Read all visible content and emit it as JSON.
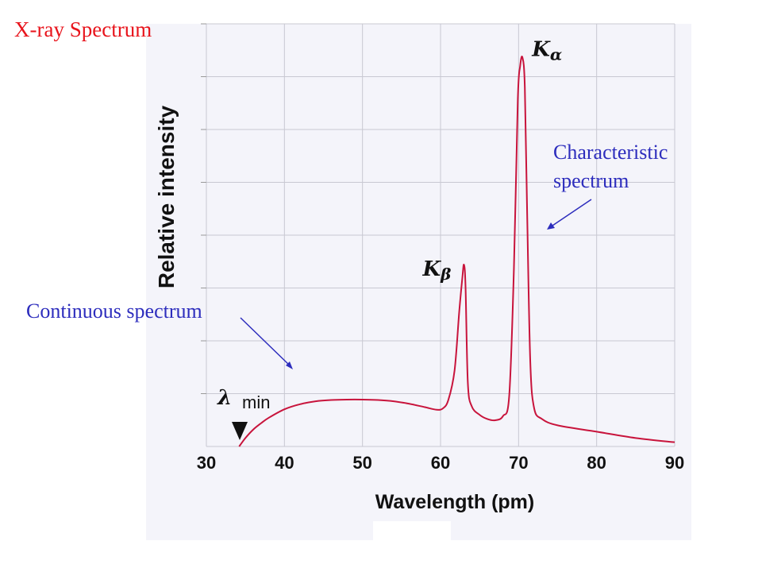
{
  "page": {
    "title": "X-ray Spectrum"
  },
  "annotations": {
    "continuous": "Continuous spectrum",
    "characteristic_line1": "Characteristic",
    "characteristic_line2": "spectrum",
    "lambda_min_symbol": "λ",
    "lambda_min_sub": "min"
  },
  "colors": {
    "title": "#e8141c",
    "annotation": "#2d2dbd",
    "curve": "#c8143c",
    "grid": "#c8c8d2",
    "panel": "#f4f4fa"
  },
  "chart_data": {
    "type": "line",
    "title": "",
    "xlabel": "Wavelength (pm)",
    "ylabel": "Relative intensity",
    "xlim": [
      30,
      90
    ],
    "ylim": [
      0,
      1
    ],
    "x_ticks": [
      "30",
      "40",
      "50",
      "60",
      "70",
      "80",
      "90"
    ],
    "grid": true,
    "peaks": [
      {
        "label_main": "K",
        "label_sub": "β",
        "x": 63,
        "y": 0.43
      },
      {
        "label_main": "K",
        "label_sub": "α",
        "x": 70.5,
        "y": 0.92
      }
    ],
    "series": [
      {
        "x": [
          34.2,
          35,
          36,
          37,
          38,
          40,
          42,
          44,
          46,
          48,
          50,
          52,
          54,
          56,
          58,
          59.5,
          60.3,
          61,
          61.8,
          62.4,
          62.8,
          63.0,
          63.2,
          63.5,
          64,
          65,
          66,
          67,
          68,
          68.8,
          69.4,
          69.9,
          70.2,
          70.5,
          70.8,
          71.1,
          71.5,
          72,
          73,
          75,
          80,
          85,
          90
        ],
        "y": [
          0.0,
          0.02,
          0.04,
          0.055,
          0.068,
          0.088,
          0.1,
          0.107,
          0.11,
          0.111,
          0.111,
          0.11,
          0.107,
          0.101,
          0.093,
          0.087,
          0.09,
          0.11,
          0.18,
          0.32,
          0.4,
          0.43,
          0.38,
          0.15,
          0.095,
          0.075,
          0.065,
          0.062,
          0.072,
          0.12,
          0.42,
          0.82,
          0.9,
          0.92,
          0.85,
          0.55,
          0.2,
          0.09,
          0.065,
          0.05,
          0.035,
          0.02,
          0.01
        ]
      }
    ]
  }
}
